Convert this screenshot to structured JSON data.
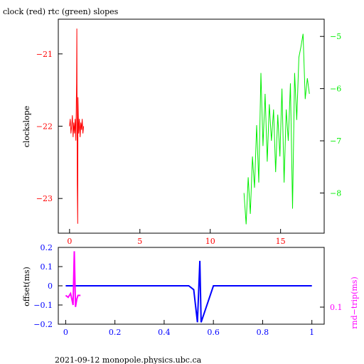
{
  "title": "clock (red) rtc (green) slopes",
  "footer": "2021-09-12 monopole.physics.ubc.ca",
  "colors": {
    "clock": "#ff0000",
    "rtc": "#00ee00",
    "offset": "#0000ff",
    "roundtrip": "#ff00ff",
    "frame": "#000000"
  },
  "chart_data": [
    {
      "id": "slopes",
      "type": "line",
      "title": "clock (red) rtc (green) slopes",
      "ylabel": "clockslope",
      "xlim": [
        -0.8,
        18.1
      ],
      "ylim_left": [
        -23.48,
        -20.52
      ],
      "ylim_right": [
        -8.77,
        -4.67
      ],
      "x_ticks": [
        0,
        5,
        10,
        15
      ],
      "y_left_ticks": [
        -21,
        -22,
        -23
      ],
      "y_right_ticks": [
        -5,
        -6,
        -7,
        -8
      ],
      "series": [
        {
          "key": "clock",
          "axis": "left",
          "x": [
            0.0,
            0.05,
            0.1,
            0.15,
            0.2,
            0.25,
            0.3,
            0.35,
            0.4,
            0.45,
            0.5,
            0.52,
            0.55,
            0.58,
            0.6,
            0.65,
            0.7,
            0.75,
            0.8,
            0.85,
            0.9,
            0.95,
            1.0
          ],
          "y": [
            -22.0,
            -21.9,
            -22.1,
            -22.0,
            -21.85,
            -22.15,
            -21.95,
            -22.1,
            -21.9,
            -22.2,
            -21.4,
            -20.65,
            -22.8,
            -23.35,
            -21.6,
            -22.1,
            -21.9,
            -22.15,
            -21.95,
            -22.05,
            -21.9,
            -22.1,
            -22.0
          ]
        },
        {
          "key": "rtc",
          "axis": "right",
          "x": [
            12.4,
            12.55,
            12.7,
            12.85,
            13.0,
            13.15,
            13.3,
            13.45,
            13.6,
            13.75,
            13.9,
            14.05,
            14.2,
            14.35,
            14.5,
            14.65,
            14.8,
            14.95,
            15.1,
            15.25,
            15.4,
            15.55,
            15.7,
            15.85,
            16.0,
            16.15,
            16.3,
            16.45,
            16.6,
            16.75,
            16.9,
            17.05
          ],
          "y": [
            -8.0,
            -8.6,
            -7.7,
            -8.4,
            -7.3,
            -7.9,
            -6.7,
            -7.8,
            -5.7,
            -7.1,
            -6.1,
            -7.4,
            -6.3,
            -7.0,
            -6.4,
            -7.6,
            -6.5,
            -7.3,
            -6.0,
            -7.8,
            -6.4,
            -7.0,
            -5.9,
            -8.3,
            -5.7,
            -6.6,
            -5.4,
            -5.2,
            -4.95,
            -6.2,
            -5.8,
            -6.1
          ]
        }
      ]
    },
    {
      "id": "offset",
      "type": "scatter",
      "ylabel": "offset(ms)",
      "ylabel_right": "rnd−trip(ms)",
      "xlim": [
        -0.03,
        1.05
      ],
      "ylim": [
        -0.2,
        0.2
      ],
      "x_ticks": [
        "0",
        "0.2",
        "0.4",
        "0.6",
        "0.8",
        "1"
      ],
      "y_ticks": [
        "0.2",
        "0.1",
        "0",
        "−0.1",
        "−0.2"
      ],
      "y_right_ticks": [
        "0.1"
      ],
      "series": [
        {
          "key": "offset",
          "x": [
            0.0,
            0.1,
            0.2,
            0.3,
            0.4,
            0.5,
            0.52,
            0.535,
            0.545,
            0.55,
            0.6,
            0.7,
            0.8,
            0.9,
            1.0
          ],
          "y": [
            0.0,
            0.0,
            0.0,
            0.0,
            0.0,
            0.0,
            -0.02,
            -0.19,
            0.13,
            -0.19,
            0.0,
            0.0,
            0.0,
            0.0,
            0.0
          ]
        },
        {
          "key": "roundtrip",
          "x": [
            0.0,
            0.01,
            0.02,
            0.03,
            0.035,
            0.04,
            0.045,
            0.05,
            0.06
          ],
          "y": [
            -0.05,
            -0.06,
            -0.04,
            -0.1,
            0.18,
            -0.11,
            -0.07,
            -0.05,
            -0.05
          ]
        }
      ]
    }
  ]
}
